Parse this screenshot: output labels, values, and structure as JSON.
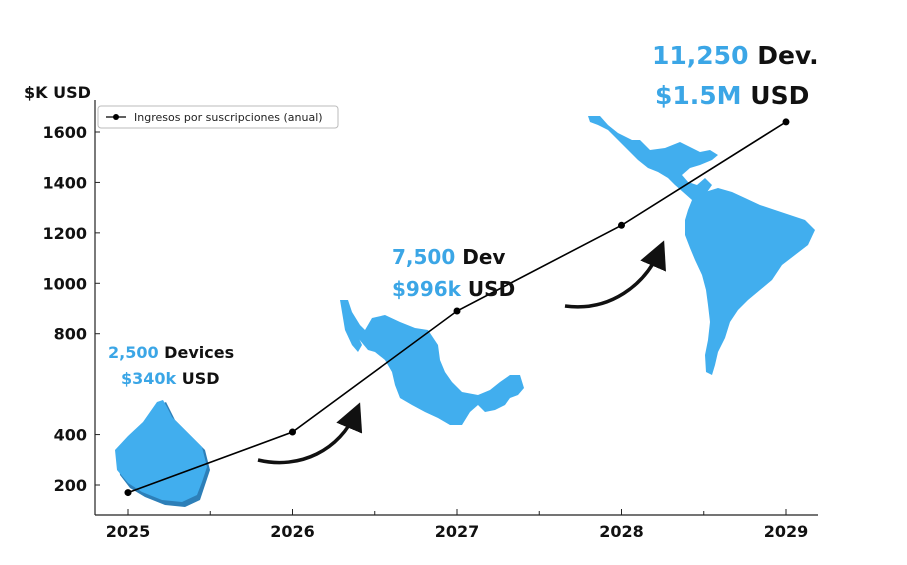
{
  "chart_data": {
    "type": "line",
    "ylabel": "$K USD",
    "categories": [
      "2025",
      "2026",
      "2027",
      "2028",
      "2029"
    ],
    "series": [
      {
        "name": "Ingresos por suscripciones (anual)",
        "values": [
          170,
          410,
          890,
          1230,
          1640
        ]
      }
    ],
    "yticks": [
      200,
      400,
      800,
      1000,
      1200,
      1400,
      1600
    ],
    "ylim": [
      100,
      1700
    ],
    "grid": false,
    "legend": "top-left",
    "line_color": "#000000",
    "annotations": [
      {
        "count": "2,500",
        "count_label": " Devices",
        "revenue": "$340k",
        "revenue_label": " USD"
      },
      {
        "count": "7,500",
        "count_label": " Dev",
        "revenue": "$996k",
        "revenue_label": " USD"
      },
      {
        "count": "11,250",
        "count_label": " Dev.",
        "revenue": "$1.5M",
        "revenue_label": " USD"
      }
    ],
    "map_color": "#41aeee"
  }
}
